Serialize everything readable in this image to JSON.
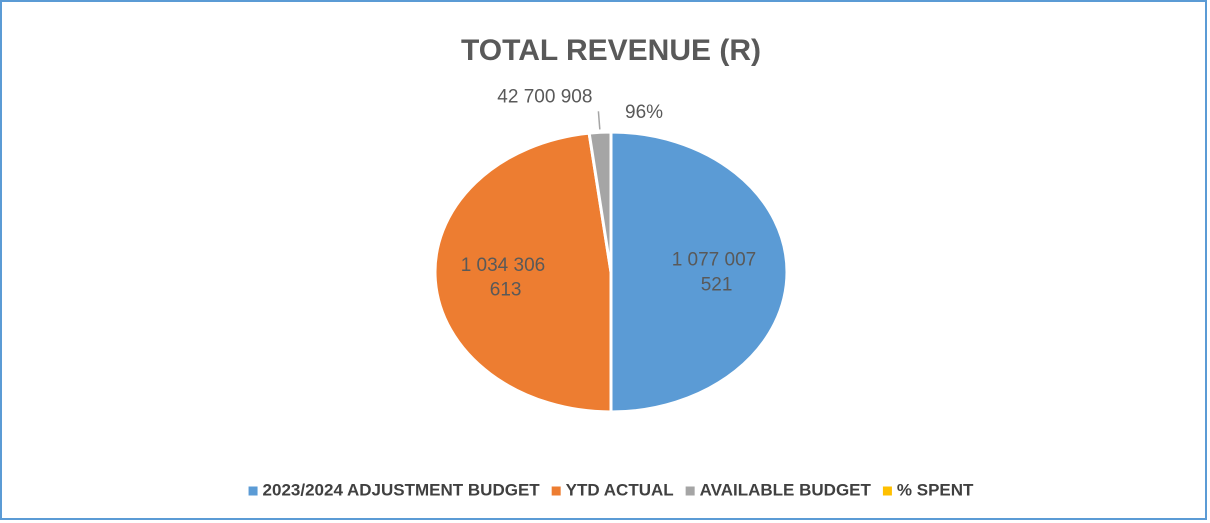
{
  "chart_data": {
    "type": "pie",
    "title": "TOTAL REVENUE (R)",
    "categories": [
      "2023/2024 ADJUSTMENT BUDGET",
      "YTD ACTUAL",
      "AVAILABLE BUDGET",
      "% SPENT"
    ],
    "values": [
      1077007521,
      1034306613,
      42700908,
      96
    ],
    "value_labels": [
      "1 077 007 521",
      "1 034 306 613",
      "42 700 908",
      "96%"
    ],
    "colors": [
      "#5b9bd5",
      "#ed7d31",
      "#a5a5a5",
      "#ffc000"
    ],
    "legend": "bottom"
  }
}
